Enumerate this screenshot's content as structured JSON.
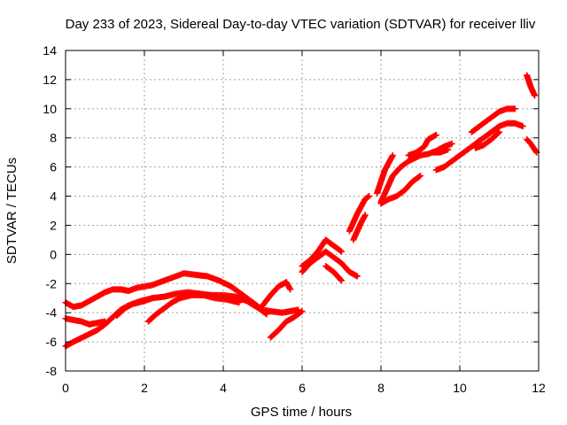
{
  "chart_data": {
    "type": "scatter",
    "title": "Day 233 of 2023, Sidereal Day-to-day VTEC variation (SDTVAR) for receiver lliv",
    "xlabel": "GPS time / hours",
    "ylabel": "SDTVAR / TECUs",
    "xlim": [
      0,
      12
    ],
    "ylim": [
      -8,
      14
    ],
    "xticks": [
      0,
      2,
      4,
      6,
      8,
      10,
      12
    ],
    "yticks": [
      -8,
      -6,
      -4,
      -2,
      0,
      2,
      4,
      6,
      8,
      10,
      12,
      14
    ],
    "grid": true,
    "marker_color": "#ff0000",
    "series": [
      {
        "points": [
          [
            0,
            -3.3
          ],
          [
            0.2,
            -3.6
          ],
          [
            0.4,
            -3.5
          ],
          [
            0.6,
            -3.2
          ],
          [
            0.8,
            -2.9
          ],
          [
            1.0,
            -2.6
          ],
          [
            1.2,
            -2.4
          ],
          [
            1.4,
            -2.4
          ],
          [
            1.6,
            -2.5
          ],
          [
            1.8,
            -2.3
          ],
          [
            2.0,
            -2.2
          ],
          [
            2.2,
            -2.1
          ],
          [
            2.5,
            -1.8
          ],
          [
            2.8,
            -1.5
          ],
          [
            3.0,
            -1.3
          ],
          [
            3.3,
            -1.4
          ],
          [
            3.6,
            -1.5
          ],
          [
            3.9,
            -1.8
          ],
          [
            4.2,
            -2.2
          ],
          [
            4.5,
            -2.8
          ],
          [
            4.8,
            -3.4
          ],
          [
            5.0,
            -3.8
          ],
          [
            5.2,
            -3.9
          ],
          [
            5.5,
            -4.0
          ],
          [
            5.7,
            -3.9
          ],
          [
            5.9,
            -3.8
          ]
        ]
      },
      {
        "points": [
          [
            0,
            -6.3
          ],
          [
            0.2,
            -6.0
          ],
          [
            0.5,
            -5.6
          ],
          [
            0.8,
            -5.2
          ],
          [
            1.0,
            -4.8
          ],
          [
            1.2,
            -4.3
          ],
          [
            1.4,
            -3.8
          ],
          [
            1.6,
            -3.5
          ],
          [
            1.9,
            -3.2
          ],
          [
            2.2,
            -3.0
          ],
          [
            2.5,
            -2.9
          ],
          [
            2.8,
            -2.7
          ],
          [
            3.1,
            -2.6
          ],
          [
            3.4,
            -2.7
          ],
          [
            3.7,
            -2.8
          ],
          [
            4.0,
            -2.8
          ],
          [
            4.3,
            -2.9
          ],
          [
            4.6,
            -3.2
          ],
          [
            4.9,
            -3.7
          ],
          [
            5.1,
            -4.1
          ]
        ]
      },
      {
        "points": [
          [
            0,
            -4.4
          ],
          [
            0.2,
            -4.5
          ],
          [
            0.4,
            -4.6
          ],
          [
            0.6,
            -4.8
          ],
          [
            0.8,
            -4.7
          ],
          [
            1.0,
            -4.6
          ]
        ]
      },
      {
        "points": [
          [
            1.3,
            -4.2
          ],
          [
            1.5,
            -3.7
          ],
          [
            1.7,
            -3.4
          ],
          [
            2.0,
            -3.2
          ],
          [
            2.2,
            -3.0
          ]
        ]
      },
      {
        "points": [
          [
            2.1,
            -4.6
          ],
          [
            2.3,
            -4.1
          ],
          [
            2.5,
            -3.7
          ],
          [
            2.7,
            -3.3
          ],
          [
            2.9,
            -3.0
          ],
          [
            3.2,
            -2.8
          ],
          [
            3.5,
            -2.8
          ],
          [
            3.8,
            -3.0
          ],
          [
            4.1,
            -3.1
          ],
          [
            4.4,
            -3.3
          ]
        ]
      },
      {
        "points": [
          [
            5.2,
            -5.7
          ],
          [
            5.4,
            -5.2
          ],
          [
            5.6,
            -4.6
          ],
          [
            5.8,
            -4.3
          ],
          [
            6.0,
            -3.9
          ]
        ]
      },
      {
        "points": [
          [
            5.0,
            -3.5
          ],
          [
            5.2,
            -2.8
          ],
          [
            5.4,
            -2.2
          ],
          [
            5.6,
            -1.9
          ],
          [
            5.7,
            -2.4
          ]
        ]
      },
      {
        "points": [
          [
            6.0,
            -0.8
          ],
          [
            6.2,
            -0.4
          ],
          [
            6.4,
            0.2
          ],
          [
            6.5,
            0.6
          ],
          [
            6.6,
            1.0
          ],
          [
            6.8,
            0.6
          ],
          [
            7.0,
            0.2
          ]
        ]
      },
      {
        "points": [
          [
            6.0,
            -1.2
          ],
          [
            6.2,
            -0.6
          ],
          [
            6.4,
            -0.2
          ],
          [
            6.6,
            0.2
          ],
          [
            6.8,
            -0.2
          ],
          [
            7.0,
            -0.6
          ],
          [
            7.2,
            -1.2
          ],
          [
            7.4,
            -1.5
          ]
        ]
      },
      {
        "points": [
          [
            6.6,
            -0.8
          ],
          [
            6.8,
            -1.2
          ],
          [
            7.0,
            -1.8
          ]
        ]
      },
      {
        "points": [
          [
            7.2,
            1.6
          ],
          [
            7.3,
            2.2
          ],
          [
            7.4,
            2.8
          ],
          [
            7.5,
            3.3
          ],
          [
            7.6,
            3.8
          ],
          [
            7.7,
            4.0
          ]
        ]
      },
      {
        "points": [
          [
            7.3,
            1.0
          ],
          [
            7.4,
            1.6
          ],
          [
            7.5,
            2.2
          ],
          [
            7.6,
            2.7
          ]
        ]
      },
      {
        "points": [
          [
            8.0,
            3.6
          ],
          [
            8.1,
            4.2
          ],
          [
            8.2,
            4.8
          ],
          [
            8.3,
            5.4
          ],
          [
            8.5,
            6.0
          ],
          [
            8.7,
            6.4
          ],
          [
            9.0,
            6.8
          ],
          [
            9.2,
            6.9
          ],
          [
            9.4,
            7.1
          ],
          [
            9.6,
            7.4
          ],
          [
            9.8,
            7.6
          ]
        ]
      },
      {
        "points": [
          [
            7.9,
            4.2
          ],
          [
            8.0,
            5.0
          ],
          [
            8.1,
            5.8
          ],
          [
            8.2,
            6.3
          ],
          [
            8.3,
            6.8
          ]
        ]
      },
      {
        "points": [
          [
            8.0,
            3.5
          ],
          [
            8.2,
            3.8
          ],
          [
            8.4,
            4.0
          ],
          [
            8.6,
            4.4
          ],
          [
            8.8,
            5.0
          ],
          [
            9.0,
            5.4
          ]
        ]
      },
      {
        "points": [
          [
            8.7,
            6.8
          ],
          [
            8.9,
            7.0
          ],
          [
            9.1,
            7.4
          ],
          [
            9.2,
            7.9
          ],
          [
            9.4,
            8.2
          ]
        ]
      },
      {
        "points": [
          [
            9.4,
            5.8
          ],
          [
            9.6,
            6.0
          ],
          [
            9.8,
            6.4
          ],
          [
            10.0,
            6.8
          ],
          [
            10.2,
            7.2
          ]
        ]
      },
      {
        "points": [
          [
            9.3,
            7.0
          ],
          [
            9.5,
            7.0
          ],
          [
            9.7,
            7.2
          ]
        ]
      },
      {
        "points": [
          [
            10.2,
            7.2
          ],
          [
            10.4,
            7.6
          ],
          [
            10.6,
            8.0
          ],
          [
            10.8,
            8.4
          ],
          [
            11.0,
            8.8
          ],
          [
            11.2,
            9.0
          ],
          [
            11.4,
            9.0
          ],
          [
            11.6,
            8.8
          ]
        ]
      },
      {
        "points": [
          [
            10.3,
            8.4
          ],
          [
            10.5,
            8.8
          ],
          [
            10.7,
            9.2
          ],
          [
            10.9,
            9.6
          ],
          [
            11.0,
            9.8
          ],
          [
            11.2,
            10.0
          ],
          [
            11.4,
            10.0
          ]
        ]
      },
      {
        "points": [
          [
            10.4,
            7.3
          ],
          [
            10.6,
            7.5
          ],
          [
            10.8,
            7.9
          ],
          [
            11.0,
            8.4
          ]
        ]
      },
      {
        "points": [
          [
            11.7,
            12.3
          ],
          [
            11.75,
            11.9
          ],
          [
            11.8,
            11.5
          ],
          [
            11.85,
            11.2
          ],
          [
            11.9,
            10.9
          ]
        ]
      },
      {
        "points": [
          [
            11.7,
            7.9
          ],
          [
            11.8,
            7.6
          ],
          [
            11.9,
            7.2
          ],
          [
            11.95,
            7.0
          ]
        ]
      }
    ]
  }
}
